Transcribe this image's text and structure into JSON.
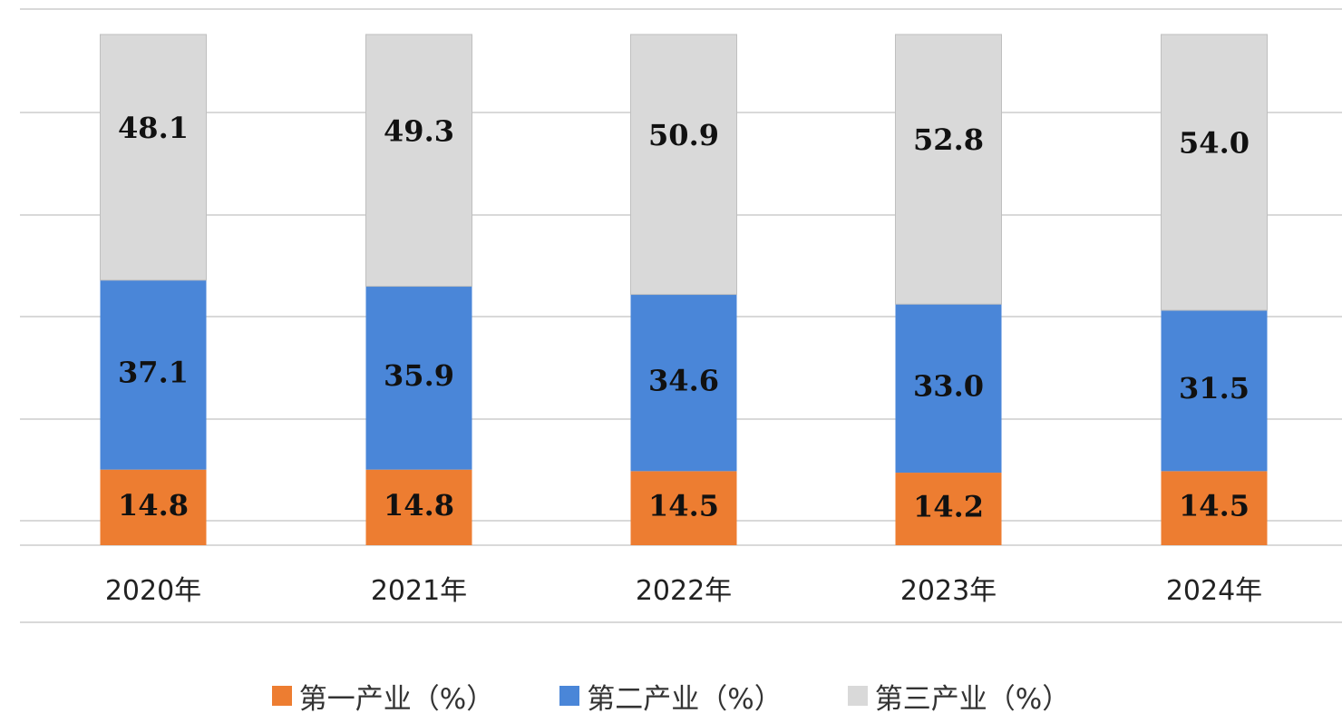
{
  "chart_data": {
    "type": "bar",
    "stacked": true,
    "title": "",
    "xlabel": "",
    "ylabel": "",
    "ylim": [
      0,
      100
    ],
    "grid": true,
    "legend_position": "bottom",
    "categories": [
      "2020年",
      "2021年",
      "2022年",
      "2023年",
      "2024年"
    ],
    "series": [
      {
        "name": "第一产业（%）",
        "color": "#ED7D31",
        "values": [
          14.8,
          14.8,
          14.5,
          14.2,
          14.5
        ]
      },
      {
        "name": "第二产业（%）",
        "color": "#4A86D8",
        "values": [
          37.1,
          35.9,
          34.6,
          33.0,
          31.5
        ]
      },
      {
        "name": "第三产业（%）",
        "color": "#D9D9D9",
        "values": [
          48.1,
          49.3,
          50.9,
          52.8,
          54.0
        ]
      }
    ]
  }
}
